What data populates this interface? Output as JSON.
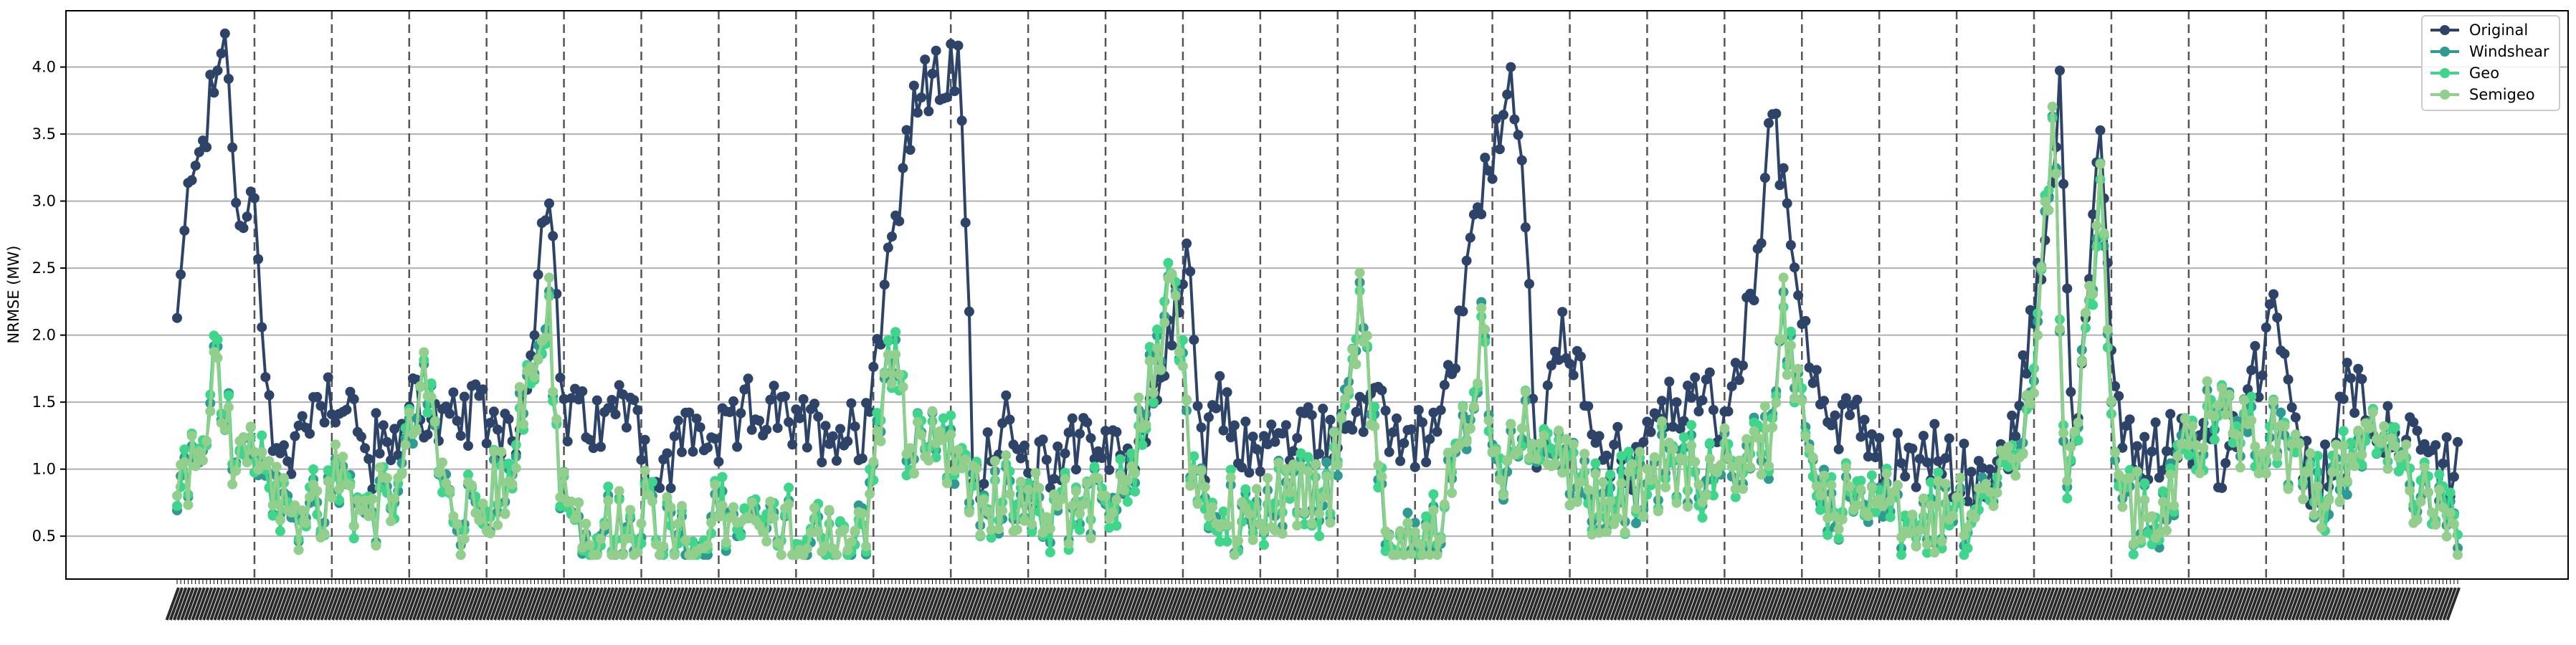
{
  "chart_data": {
    "type": "line",
    "title": "",
    "xlabel": "",
    "ylabel": "NRMSE (MW)",
    "ylim": [
      0.18,
      4.42
    ],
    "yticks": [
      "0.5",
      "1.0",
      "1.5",
      "2.0",
      "2.5",
      "3.0",
      "3.5",
      "4.0"
    ],
    "grid": "horizontal",
    "legend_position": "top-right",
    "n_points": 620,
    "section_size": 21,
    "section_count": 29,
    "x_tick_labels": "dense, illegible (one rotated label per point)",
    "series": [
      {
        "name": "Original",
        "color": "#2e4368"
      },
      {
        "name": "Windshear",
        "color": "#2f9a91"
      },
      {
        "name": "Geo",
        "color": "#3fd68c"
      },
      {
        "name": "Semigeo",
        "color": "#93cf8c"
      }
    ],
    "anchors": {
      "Original": [
        [
          0,
          2.05
        ],
        [
          6,
          3.45
        ],
        [
          10,
          3.5
        ],
        [
          14,
          3.9
        ],
        [
          18,
          4.2
        ],
        [
          23,
          2.6
        ],
        [
          27,
          3.1
        ],
        [
          34,
          1.4
        ],
        [
          40,
          1.0
        ],
        [
          50,
          1.55
        ],
        [
          62,
          1.55
        ],
        [
          70,
          1.0
        ],
        [
          74,
          1.3
        ],
        [
          78,
          1.0
        ],
        [
          85,
          1.6
        ],
        [
          95,
          1.3
        ],
        [
          110,
          1.4
        ],
        [
          125,
          1.3
        ],
        [
          132,
          2.6
        ],
        [
          137,
          2.85
        ],
        [
          140,
          1.4
        ],
        [
          155,
          1.3
        ],
        [
          165,
          1.6
        ],
        [
          175,
          0.8
        ],
        [
          185,
          1.3
        ],
        [
          200,
          1.2
        ],
        [
          210,
          1.5
        ],
        [
          225,
          1.3
        ],
        [
          240,
          1.3
        ],
        [
          250,
          1.3
        ],
        [
          255,
          2.0
        ],
        [
          265,
          3.4
        ],
        [
          270,
          3.8
        ],
        [
          285,
          4.0
        ],
        [
          290,
          0.9
        ],
        [
          300,
          1.4
        ],
        [
          310,
          0.9
        ],
        [
          330,
          1.3
        ],
        [
          345,
          1.0
        ],
        [
          360,
          1.8
        ],
        [
          368,
          2.7
        ],
        [
          373,
          1.0
        ],
        [
          380,
          1.5
        ],
        [
          390,
          1.1
        ],
        [
          400,
          1.2
        ],
        [
          420,
          1.3
        ],
        [
          435,
          1.4
        ],
        [
          450,
          1.2
        ],
        [
          460,
          1.3
        ],
        [
          470,
          2.5
        ],
        [
          480,
          3.5
        ],
        [
          485,
          3.8
        ],
        [
          490,
          3.2
        ],
        [
          495,
          1.0
        ],
        [
          503,
          2.0
        ],
        [
          520,
          1.2
        ],
        [
          530,
          1.0
        ],
        [
          545,
          1.5
        ],
        [
          555,
          1.6
        ],
        [
          565,
          1.3
        ],
        [
          575,
          2.5
        ],
        [
          580,
          3.7
        ],
        [
          590,
          2.3
        ],
        [
          596,
          1.8
        ],
        [
          600,
          1.2
        ],
        [
          610,
          1.6
        ],
        [
          620,
          1.0
        ],
        [
          640,
          1.1
        ],
        [
          660,
          0.8
        ],
        [
          670,
          1.4
        ],
        [
          680,
          2.8
        ],
        [
          685,
          3.85
        ],
        [
          690,
          1.0
        ],
        [
          700,
          3.6
        ],
        [
          705,
          1.5
        ],
        [
          715,
          1.1
        ],
        [
          730,
          1.3
        ],
        [
          745,
          1.0
        ],
        [
          760,
          1.9
        ],
        [
          765,
          2.2
        ],
        [
          770,
          1.2
        ],
        [
          780,
          0.8
        ],
        [
          790,
          1.7
        ],
        [
          800,
          1.4
        ],
        [
          810,
          1.2
        ],
        [
          820,
          1.0
        ],
        [
          830,
          1.0
        ]
      ],
      "Windshear": [
        [
          0,
          0.8
        ],
        [
          10,
          1.2
        ],
        [
          14,
          1.8
        ],
        [
          20,
          1.2
        ],
        [
          30,
          1.0
        ],
        [
          40,
          0.6
        ],
        [
          60,
          0.9
        ],
        [
          80,
          0.6
        ],
        [
          90,
          1.9
        ],
        [
          100,
          0.5
        ],
        [
          120,
          0.9
        ],
        [
          135,
          2.3
        ],
        [
          140,
          0.8
        ],
        [
          150,
          0.5
        ],
        [
          170,
          0.7
        ],
        [
          185,
          0.4
        ],
        [
          200,
          0.6
        ],
        [
          225,
          0.5
        ],
        [
          250,
          0.5
        ],
        [
          262,
          2.2
        ],
        [
          265,
          1.2
        ],
        [
          280,
          1.2
        ],
        [
          290,
          0.8
        ],
        [
          320,
          0.7
        ],
        [
          345,
          0.8
        ],
        [
          363,
          2.4
        ],
        [
          370,
          0.9
        ],
        [
          385,
          0.6
        ],
        [
          400,
          0.8
        ],
        [
          420,
          0.9
        ],
        [
          430,
          2.2
        ],
        [
          440,
          0.5
        ],
        [
          450,
          0.4
        ],
        [
          460,
          0.7
        ],
        [
          470,
          1.3
        ],
        [
          475,
          2.1
        ],
        [
          480,
          0.9
        ],
        [
          490,
          1.3
        ],
        [
          500,
          1.2
        ],
        [
          520,
          0.7
        ],
        [
          540,
          1.0
        ],
        [
          560,
          1.0
        ],
        [
          580,
          1.2
        ],
        [
          585,
          2.2
        ],
        [
          590,
          1.5
        ],
        [
          600,
          0.7
        ],
        [
          620,
          0.7
        ],
        [
          640,
          0.6
        ],
        [
          660,
          0.7
        ],
        [
          675,
          1.6
        ],
        [
          683,
          3.55
        ],
        [
          688,
          0.6
        ],
        [
          700,
          3.2
        ],
        [
          705,
          0.8
        ],
        [
          720,
          0.6
        ],
        [
          740,
          1.4
        ],
        [
          760,
          1.3
        ],
        [
          780,
          0.8
        ],
        [
          800,
          1.2
        ],
        [
          820,
          0.7
        ],
        [
          830,
          0.6
        ]
      ]
    }
  }
}
